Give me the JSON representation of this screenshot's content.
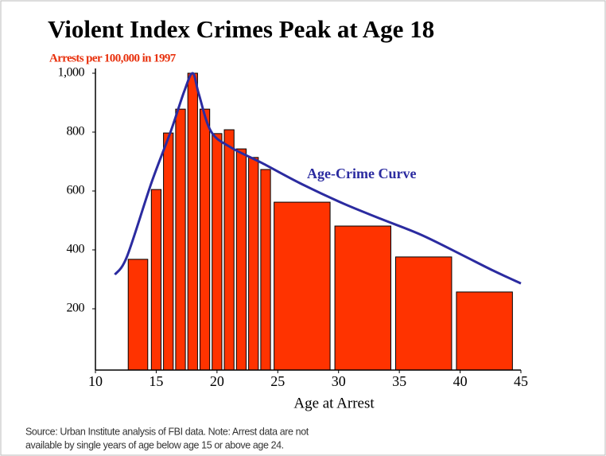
{
  "chart_data": {
    "type": "histogram",
    "title": "Violent Index Crimes Peak at Age 18",
    "subtitle": "Arrests per 100,000 in 1997",
    "x_label": "Age at Arrest",
    "bins": [
      12.5,
      14.5,
      15.5,
      16.5,
      17.5,
      18.5,
      19.5,
      20.5,
      21.5,
      22.5,
      23.5,
      24.5,
      29.5,
      34.5,
      39.5,
      44.5
    ],
    "values": [
      368,
      605,
      797,
      878,
      1000,
      878,
      795,
      808,
      743,
      714,
      673,
      562,
      481,
      376,
      257
    ],
    "color": "#ff3300",
    "series": [
      {
        "name": "Age-Crime Curve",
        "color": "#2b2ba0",
        "x": [
          11.6,
          12.6,
          14.6,
          16.2,
          17.3,
          18,
          18.5,
          19.5,
          21.1,
          23.7,
          26.8,
          30.3,
          33.5,
          36.8,
          40.1,
          42.7,
          45
        ],
        "values": [
          316,
          378,
          627,
          803,
          938,
          1000,
          930,
          803,
          749,
          695,
          627,
          559,
          505,
          451,
          384,
          330,
          286
        ]
      }
    ],
    "xlim": [
      10,
      45
    ],
    "xticks": [
      10,
      15,
      20,
      25,
      30,
      35,
      40,
      45
    ],
    "ylim": [
      0,
      1000
    ],
    "yticks": [
      200,
      400,
      600,
      800,
      {
        "value": 1000,
        "label": "1,000"
      }
    ],
    "source": [
      "Source: Urban Institute analysis of FBI data.  Note: Arrest data are not",
      "available by single years of age below age 15 or above age 24."
    ]
  }
}
